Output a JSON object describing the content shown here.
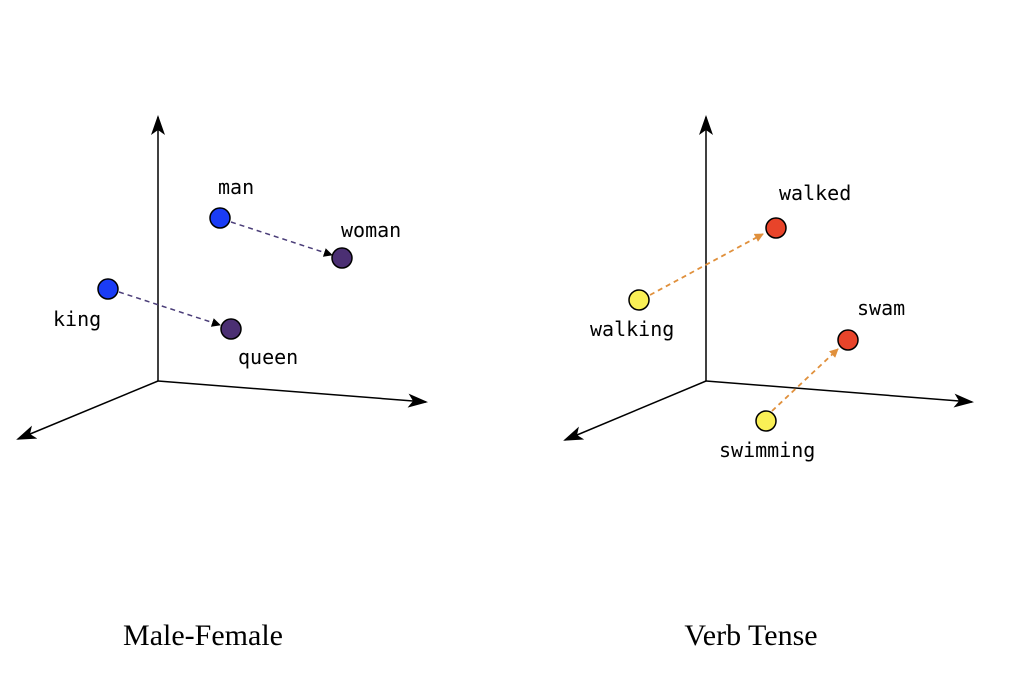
{
  "panels": [
    {
      "caption": "Male-Female",
      "arrow_color": "#4a3d78",
      "points": {
        "man": {
          "label": "man",
          "color": "#1a3cf5"
        },
        "woman": {
          "label": "woman",
          "color": "#4b2f73"
        },
        "king": {
          "label": "king",
          "color": "#1a3cf5"
        },
        "queen": {
          "label": "queen",
          "color": "#4b2f73"
        }
      },
      "pairs": [
        [
          "man",
          "woman"
        ],
        [
          "king",
          "queen"
        ]
      ]
    },
    {
      "caption": "Verb Tense",
      "arrow_color": "#e0903c",
      "points": {
        "walking": {
          "label": "walking",
          "color": "#faf056"
        },
        "walked": {
          "label": "walked",
          "color": "#e8442a"
        },
        "swimming": {
          "label": "swimming",
          "color": "#faf056"
        },
        "swam": {
          "label": "swam",
          "color": "#e8442a"
        }
      },
      "pairs": [
        [
          "walking",
          "walked"
        ],
        [
          "swimming",
          "swam"
        ]
      ]
    }
  ]
}
